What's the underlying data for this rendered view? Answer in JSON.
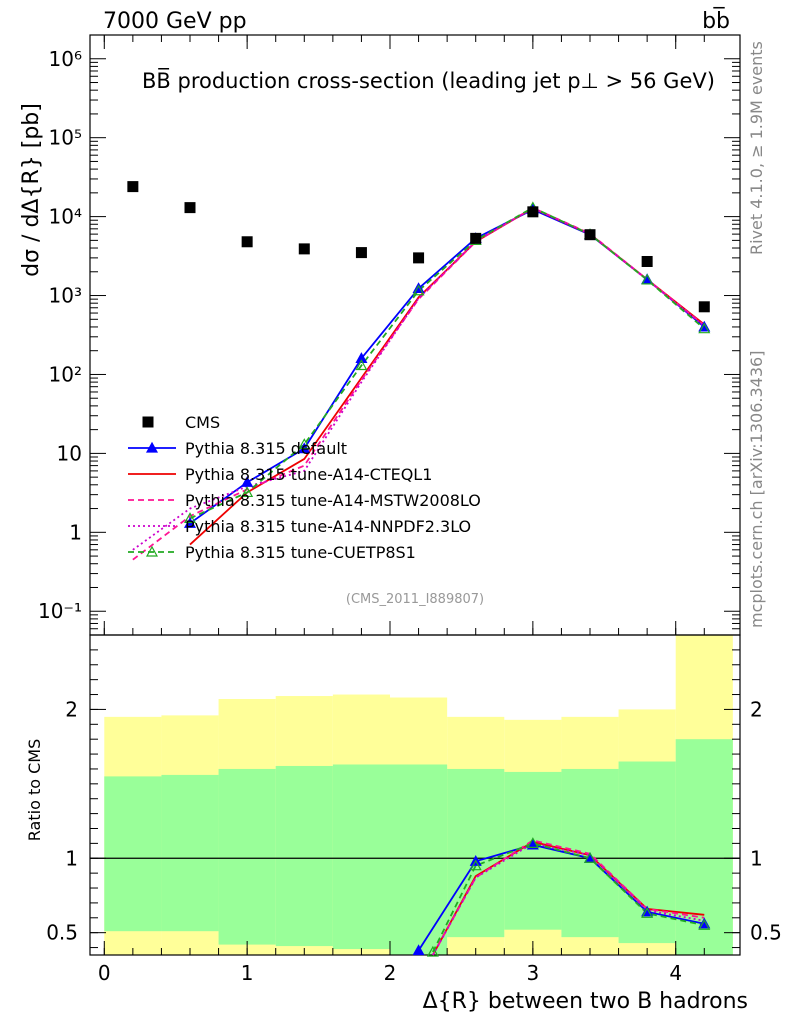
{
  "header": {
    "energy_label": "7000 GeV pp",
    "process_label": "bb̅",
    "side_version": "Rivet 4.1.0, ≥ 1.9M events",
    "side_source": "mcplots.cern.ch [arXiv:1306.3436]",
    "analysis_id": "(CMS_2011_I889807)"
  },
  "chart_data": {
    "type": "line",
    "title": "BB̅ production cross-section (leading jet p⊥ > 56 GeV)",
    "xlabel": "Δ{R} between two B hadrons",
    "ylabel": "dσ / dΔ{R} [pb]",
    "ratio_ylabel": "Ratio to CMS",
    "xlim": [
      -0.1,
      4.45
    ],
    "ylim": [
      0.05,
      2000000
    ],
    "ratio_ylim": [
      0.35,
      2.5
    ],
    "x_ticks": [
      "0",
      "1",
      "2",
      "3",
      "4"
    ],
    "y_ticks": [
      "10⁻¹",
      "1",
      "10",
      "10²",
      "10³",
      "10⁴",
      "10⁵",
      "10⁶"
    ],
    "ratio_ticks": [
      "0.5",
      "1",
      "2"
    ],
    "cms": {
      "name": "CMS",
      "x": [
        0.2,
        0.6,
        1.0,
        1.4,
        1.8,
        2.2,
        2.6,
        3.0,
        3.4,
        3.8,
        4.2
      ],
      "y": [
        24000,
        13000,
        4800,
        3900,
        3500,
        3000,
        5300,
        11500,
        5900,
        2700,
        720
      ]
    },
    "band_edges": [
      0.0,
      0.4,
      0.8,
      1.2,
      1.6,
      2.0,
      2.4,
      2.8,
      3.2,
      3.6,
      4.0,
      4.4
    ],
    "band_green": [
      [
        0.51,
        1.55
      ],
      [
        0.51,
        1.56
      ],
      [
        0.42,
        1.6
      ],
      [
        0.41,
        1.62
      ],
      [
        0.39,
        1.63
      ],
      [
        0.35,
        1.63
      ],
      [
        0.47,
        1.6
      ],
      [
        0.52,
        1.58
      ],
      [
        0.47,
        1.6
      ],
      [
        0.43,
        1.65
      ],
      [
        0.3,
        1.8
      ]
    ],
    "band_yellow": [
      [
        0.35,
        1.95
      ],
      [
        0.35,
        1.96
      ],
      [
        0.35,
        2.07
      ],
      [
        0.35,
        2.09
      ],
      [
        0.35,
        2.1
      ],
      [
        0.35,
        2.08
      ],
      [
        0.35,
        1.95
      ],
      [
        0.35,
        1.93
      ],
      [
        0.35,
        1.95
      ],
      [
        0.35,
        2.0
      ],
      [
        0.35,
        2.5
      ]
    ],
    "series": [
      {
        "name": "Pythia 8.315 default",
        "color": "#0000ff",
        "dash": "",
        "marker": "filled-triangle",
        "x": [
          0.6,
          1.0,
          1.4,
          1.8,
          2.2,
          2.6,
          3.0,
          3.4,
          3.8,
          4.2
        ],
        "y": [
          1.3,
          4.3,
          11.5,
          160,
          1230,
          5300,
          12300,
          5900,
          1600,
          400
        ],
        "ratio_x": [
          2.2,
          2.6,
          3.0,
          3.4,
          3.8,
          4.2
        ],
        "ratio_y": [
          0.38,
          0.98,
          1.09,
          1.0,
          0.64,
          0.56
        ]
      },
      {
        "name": "Pythia 8.315 tune-A14-CTEQL1",
        "color": "#ee0000",
        "dash": "",
        "marker": "none",
        "x": [
          0.6,
          1.0,
          1.4,
          1.8,
          2.2,
          2.6,
          3.0,
          3.4,
          3.8,
          4.2
        ],
        "y": [
          0.7,
          3.2,
          8.5,
          90,
          950,
          4800,
          12800,
          6000,
          1600,
          430
        ],
        "ratio_x": [
          2.3,
          2.6,
          3.0,
          3.4,
          3.8,
          4.2
        ],
        "ratio_y": [
          0.35,
          0.88,
          1.11,
          1.02,
          0.66,
          0.62
        ]
      },
      {
        "name": "Pythia 8.315 tune-A14-MSTW2008LO",
        "color": "#ff1493",
        "dash": "6,4",
        "marker": "none",
        "x": [
          0.2,
          0.6,
          1.0,
          1.4,
          1.8,
          2.2,
          2.6,
          3.0,
          3.4,
          3.8,
          4.2
        ],
        "y": [
          0.45,
          1.6,
          3.5,
          7,
          85,
          900,
          4800,
          12900,
          6100,
          1600,
          420
        ],
        "ratio_x": [
          2.3,
          2.6,
          3.0,
          3.4,
          3.8,
          4.2
        ],
        "ratio_y": [
          0.33,
          0.87,
          1.12,
          1.03,
          0.66,
          0.6
        ]
      },
      {
        "name": "Pythia 8.315 tune-A14-NNPDF2.3LO",
        "color": "#cc00cc",
        "dash": "2,3",
        "marker": "none",
        "x": [
          0.2,
          0.6,
          1.0,
          1.4,
          1.8,
          2.2,
          2.6,
          3.0,
          3.4,
          3.8,
          4.2
        ],
        "y": [
          0.6,
          2.0,
          3.8,
          6,
          80,
          920,
          4900,
          12700,
          6000,
          1580,
          410
        ],
        "ratio_x": [
          2.3,
          2.6,
          3.0,
          3.4,
          3.8,
          4.2
        ],
        "ratio_y": [
          0.34,
          0.87,
          1.1,
          1.02,
          0.65,
          0.58
        ]
      },
      {
        "name": "Pythia 8.315 tune-CUETP8S1",
        "color": "#22aa22",
        "dash": "6,4",
        "marker": "open-triangle",
        "x": [
          0.6,
          1.0,
          1.4,
          1.8,
          2.2,
          2.6,
          3.0,
          3.4,
          3.8,
          4.2
        ],
        "y": [
          1.5,
          3.2,
          13,
          130,
          1150,
          5000,
          13000,
          5950,
          1580,
          380
        ],
        "ratio_x": [
          2.3,
          2.6,
          3.0,
          3.4,
          3.8,
          4.2
        ],
        "ratio_y": [
          0.37,
          0.95,
          1.1,
          1.0,
          0.63,
          0.55
        ]
      }
    ]
  }
}
